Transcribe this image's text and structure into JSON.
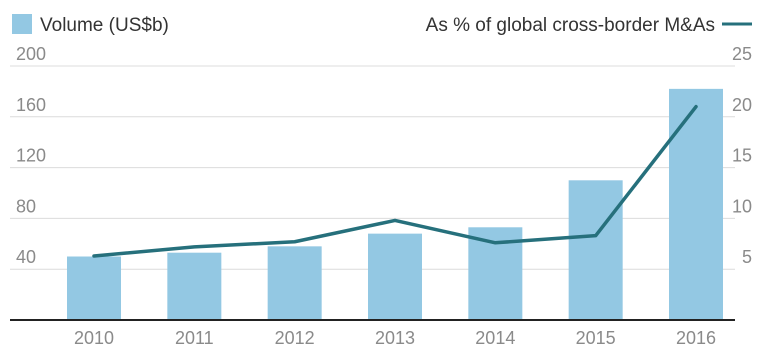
{
  "colors": {
    "bar": "#93c8e3",
    "line": "#26707c",
    "axis": "#222222",
    "tick_text": "#8a8a8a",
    "legend_text": "#333333"
  },
  "legend": {
    "bar_label": "Volume (US$b)",
    "line_label": "As % of global cross-border M&As"
  },
  "chart_data": {
    "type": "bar",
    "categories": [
      "2010",
      "2011",
      "2012",
      "2013",
      "2014",
      "2015",
      "2016"
    ],
    "series": [
      {
        "name": "Volume (US$b)",
        "type": "bar",
        "axis": "left",
        "values": [
          50,
          53,
          58,
          68,
          73,
          110,
          182
        ]
      },
      {
        "name": "As % of global cross-border M&As",
        "type": "line",
        "axis": "right",
        "values": [
          6.3,
          7.2,
          7.7,
          9.8,
          7.6,
          8.3,
          21
        ]
      }
    ],
    "y_left": {
      "ticks": [
        "40",
        "80",
        "120",
        "160",
        "200"
      ],
      "ylim": [
        0,
        200
      ]
    },
    "y_right": {
      "ticks": [
        "5",
        "10",
        "15",
        "20",
        "25"
      ],
      "ylim": [
        0,
        25
      ]
    },
    "grid": true,
    "legend_position": "top"
  }
}
